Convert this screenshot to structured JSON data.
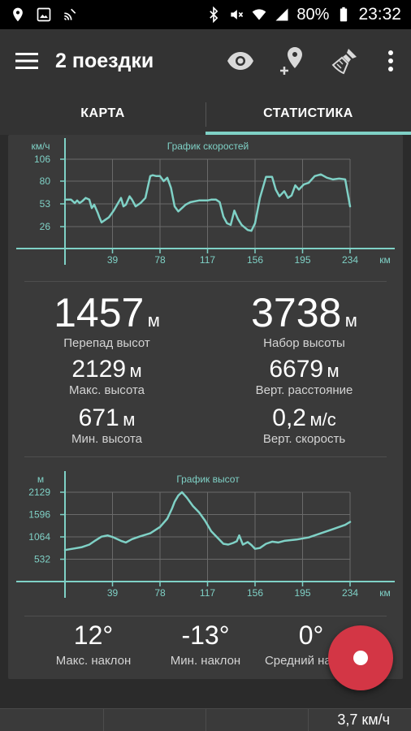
{
  "status_bar": {
    "battery": "80%",
    "time": "23:32",
    "icons": [
      "location-icon",
      "image-icon",
      "cast-icon",
      "bluetooth-icon",
      "mute-icon",
      "wifi-icon",
      "signal-icon",
      "battery-icon"
    ]
  },
  "app_bar": {
    "title": "2 поездки",
    "actions": [
      "eye-icon",
      "add-place-icon",
      "clean-icon",
      "more-vert-icon"
    ]
  },
  "tabs": [
    {
      "label": "КАРТА",
      "active": false
    },
    {
      "label": "СТАТИСТИКА",
      "active": true
    }
  ],
  "colors": {
    "accent": "#7fd1c6",
    "fab": "#d33645",
    "card": "#3a3a3a"
  },
  "chart_data": [
    {
      "type": "line",
      "title": "График скоростей",
      "ylabel": "км/ч",
      "xlabel": "км",
      "xlim": [
        0,
        234
      ],
      "ylim": [
        0,
        106
      ],
      "x_ticks": [
        "39",
        "78",
        "117",
        "156",
        "195",
        "234"
      ],
      "y_ticks": [
        "106",
        "80",
        "53",
        "26"
      ],
      "grid": true,
      "series": [
        {
          "x": [
            0,
            5,
            8,
            10,
            12,
            14,
            17,
            20,
            22,
            24,
            27,
            28,
            30,
            33,
            36,
            40,
            44,
            46,
            48,
            50,
            53,
            55,
            58,
            62,
            66,
            70,
            72,
            75,
            78,
            81,
            84,
            87,
            90,
            93,
            96,
            99,
            103,
            110,
            117,
            120,
            124,
            127,
            130,
            133,
            136,
            139,
            142,
            145,
            150,
            153,
            156,
            160,
            165,
            170,
            173,
            176,
            180,
            183,
            186,
            189,
            192,
            196,
            200,
            205,
            210,
            215,
            220,
            225,
            230,
            234
          ],
          "y": [
            58,
            58,
            54,
            57,
            54,
            56,
            60,
            58,
            48,
            52,
            42,
            38,
            31,
            34,
            37,
            45,
            55,
            60,
            50,
            52,
            62,
            58,
            50,
            54,
            60,
            86,
            87,
            86,
            86,
            80,
            84,
            72,
            50,
            44,
            48,
            52,
            55,
            57,
            57,
            58,
            58,
            55,
            38,
            30,
            28,
            45,
            35,
            28,
            22,
            21,
            30,
            60,
            85,
            85,
            70,
            62,
            68,
            60,
            63,
            75,
            70,
            76,
            78,
            86,
            88,
            84,
            82,
            83,
            82,
            50
          ]
        }
      ]
    },
    {
      "type": "line",
      "title": "График высот",
      "ylabel": "м",
      "xlabel": "км",
      "xlim": [
        0,
        234
      ],
      "ylim": [
        0,
        2129
      ],
      "x_ticks": [
        "39",
        "78",
        "117",
        "156",
        "195",
        "234"
      ],
      "y_ticks": [
        "2129",
        "1596",
        "1064",
        "532"
      ],
      "grid": true,
      "series": [
        {
          "x": [
            0,
            8,
            14,
            20,
            25,
            30,
            35,
            40,
            46,
            50,
            55,
            62,
            70,
            78,
            84,
            88,
            90,
            93,
            96,
            100,
            105,
            110,
            115,
            120,
            125,
            130,
            134,
            138,
            141,
            143,
            146,
            150,
            153,
            156,
            160,
            165,
            170,
            175,
            180,
            190,
            200,
            210,
            220,
            230,
            234
          ],
          "y": [
            750,
            790,
            820,
            880,
            980,
            1070,
            1100,
            1050,
            970,
            930,
            1010,
            1080,
            1150,
            1300,
            1500,
            1750,
            1900,
            2050,
            2129,
            2000,
            1800,
            1650,
            1450,
            1200,
            1050,
            900,
            880,
            920,
            960,
            1100,
            880,
            940,
            870,
            780,
            800,
            900,
            950,
            930,
            970,
            1000,
            1050,
            1150,
            1250,
            1350,
            1420
          ]
        }
      ]
    }
  ],
  "stats": {
    "altitude_diff": {
      "value": "1457",
      "unit": "м",
      "label": "Перепад высот"
    },
    "ascent": {
      "value": "3738",
      "unit": "м",
      "label": "Набор высоты"
    },
    "max_altitude": {
      "value": "2129",
      "unit": "м",
      "label": "Макс. высота"
    },
    "vertical_distance": {
      "value": "6679",
      "unit": "м",
      "label": "Верт. расстояние"
    },
    "min_altitude": {
      "value": "671",
      "unit": "м",
      "label": "Мин. высота"
    },
    "vertical_speed": {
      "value": "0,2",
      "unit": "м/с",
      "label": "Верт. скорость"
    },
    "max_slope": {
      "value": "12°",
      "label": "Макс. наклон"
    },
    "min_slope": {
      "value": "-13°",
      "label": "Мин. наклон"
    },
    "avg_slope": {
      "value": "0°",
      "label": "Средний наклон"
    }
  },
  "bottom_bar": {
    "speed": "3,7 км/ч"
  },
  "fab": {
    "icon": "record-icon"
  }
}
